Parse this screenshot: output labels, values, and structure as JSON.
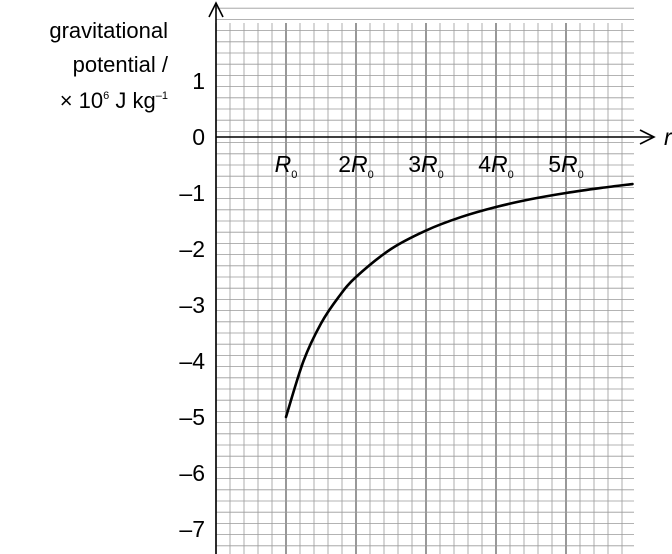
{
  "chart_data": {
    "type": "line",
    "ylabel_lines": [
      "gravitational",
      "potential /"
    ],
    "ylabel_unit": {
      "prefix": "× 10",
      "exp": "6",
      "unit": " J kg",
      "unit_exp": "–1"
    },
    "xlabel": "r",
    "xlim": [
      0,
      6
    ],
    "ylim": [
      -7.5,
      2.3
    ],
    "y_ticks": [
      {
        "value": 1,
        "label": "1"
      },
      {
        "value": 0,
        "label": "0"
      },
      {
        "value": -1,
        "label": "–1"
      },
      {
        "value": -2,
        "label": "–2"
      },
      {
        "value": -3,
        "label": "–3"
      },
      {
        "value": -4,
        "label": "–4"
      },
      {
        "value": -5,
        "label": "–5"
      },
      {
        "value": -6,
        "label": "–6"
      },
      {
        "value": -7,
        "label": "–7"
      }
    ],
    "x_ticks": [
      {
        "value": 1,
        "coef": "",
        "sym": "R",
        "sub": "0"
      },
      {
        "value": 2,
        "coef": "2",
        "sym": "R",
        "sub": "0"
      },
      {
        "value": 3,
        "coef": "3",
        "sym": "R",
        "sub": "0"
      },
      {
        "value": 4,
        "coef": "4",
        "sym": "R",
        "sub": "0"
      },
      {
        "value": 5,
        "coef": "5",
        "sym": "R",
        "sub": "0"
      }
    ],
    "grid": true,
    "grid_minor_step": [
      0.2,
      0.2
    ],
    "series": [
      {
        "x": [
          1,
          1.25,
          1.5,
          1.75,
          2,
          2.5,
          3,
          3.5,
          4,
          4.5,
          5,
          5.5,
          5.95
        ],
        "y": [
          -5,
          -4,
          -3.33,
          -2.86,
          -2.5,
          -2,
          -1.67,
          -1.43,
          -1.25,
          -1.11,
          -1.0,
          -0.91,
          -0.84
        ]
      }
    ]
  }
}
